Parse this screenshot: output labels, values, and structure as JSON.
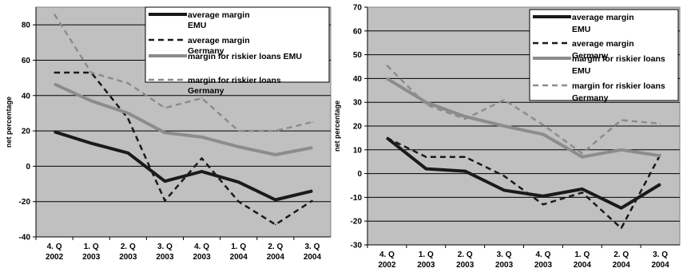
{
  "chart_data": [
    {
      "type": "line",
      "ylabel": "net percentage",
      "xlabel": "",
      "title": "",
      "ylim": [
        -40,
        90
      ],
      "yticks": [
        -40,
        -20,
        0,
        20,
        40,
        60,
        80
      ],
      "grid": true,
      "legend_position": "top-right",
      "categories": [
        [
          "4. Q",
          "2002"
        ],
        [
          "1. Q",
          "2003"
        ],
        [
          "2. Q",
          "2003"
        ],
        [
          "3. Q",
          "2003"
        ],
        [
          "4. Q",
          "2003"
        ],
        [
          "1. Q",
          "2004"
        ],
        [
          "2. Q",
          "2004"
        ],
        [
          "3. Q",
          "2004"
        ]
      ],
      "series": [
        {
          "name": "average margin EMU",
          "legend_lines": [
            "average margin",
            "EMU"
          ],
          "color": "#1a1a1a",
          "dash": "solid",
          "values": [
            19.5,
            13,
            7.5,
            -8.5,
            -3,
            -9,
            -19,
            -14
          ]
        },
        {
          "name": "average margin Germany",
          "legend_lines": [
            "average margin",
            "Germany"
          ],
          "color": "#1a1a1a",
          "dash": "dashed",
          "values": [
            53,
            53,
            27,
            -19.5,
            4.5,
            -20,
            -33,
            -19.5
          ]
        },
        {
          "name": "margin for riskier loans EMU",
          "legend_lines": [
            "margin for riskier loans EMU"
          ],
          "color": "#8c8c8c",
          "dash": "solid",
          "values": [
            46.5,
            37,
            30,
            19,
            16.5,
            11,
            6.5,
            10.5
          ]
        },
        {
          "name": "margin for riskier loans Germany",
          "legend_lines": [
            "margin for riskier loans",
            "Germany"
          ],
          "color": "#8c8c8c",
          "dash": "dashed",
          "values": [
            86,
            53,
            47,
            33,
            38.5,
            20,
            20,
            25
          ]
        }
      ]
    },
    {
      "type": "line",
      "ylabel": "net percentage",
      "xlabel": "",
      "title": "",
      "ylim": [
        -30,
        70
      ],
      "yticks": [
        -30,
        -20,
        -10,
        0,
        10,
        20,
        30,
        40,
        50,
        60,
        70
      ],
      "grid": true,
      "legend_position": "top-right",
      "categories": [
        [
          "4. Q",
          "2002"
        ],
        [
          "1. Q",
          "2003"
        ],
        [
          "2. Q",
          "2003"
        ],
        [
          "3. Q",
          "2003"
        ],
        [
          "4. Q",
          "2003"
        ],
        [
          "1. Q",
          "2004"
        ],
        [
          "2. Q",
          "2004"
        ],
        [
          "3. Q",
          "2004"
        ]
      ],
      "series": [
        {
          "name": "average margin EMU",
          "legend_lines": [
            "average margin",
            "EMU"
          ],
          "color": "#1a1a1a",
          "dash": "solid",
          "values": [
            15,
            2,
            1,
            -7,
            -9.5,
            -6.5,
            -14.5,
            -4.5
          ]
        },
        {
          "name": "average margin Germany",
          "legend_lines": [
            "average margin",
            "Germany"
          ],
          "color": "#1a1a1a",
          "dash": "dashed",
          "values": [
            15,
            7,
            7,
            -1,
            -13,
            -8,
            -23,
            8
          ]
        },
        {
          "name": "margin for riskier loans EMU",
          "legend_lines": [
            "margin for riskier loans",
            "EMU"
          ],
          "color": "#8c8c8c",
          "dash": "solid",
          "values": [
            40,
            30,
            24,
            20,
            16.5,
            7,
            10,
            7.5
          ]
        },
        {
          "name": "margin for riskier loans Germany",
          "legend_lines": [
            "margin for riskier loans",
            "Germany"
          ],
          "color": "#8c8c8c",
          "dash": "dashed",
          "values": [
            45.5,
            29,
            23,
            31,
            20.5,
            8.5,
            22.5,
            21
          ]
        }
      ]
    }
  ]
}
